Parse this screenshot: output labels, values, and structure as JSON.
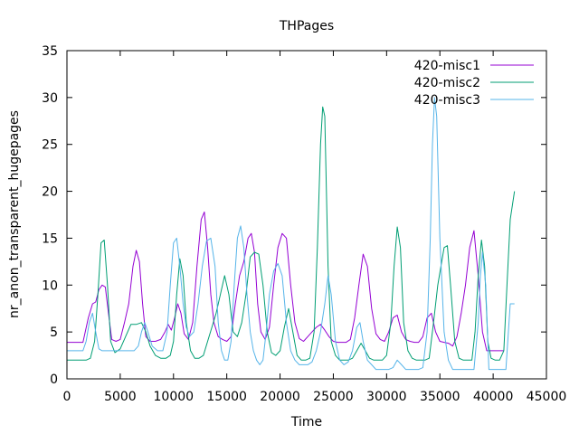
{
  "chart_data": {
    "type": "line",
    "title": "THPages",
    "xlabel": "Time",
    "ylabel": "nr_anon_transparent_hugepages",
    "xlim": [
      0,
      45000
    ],
    "ylim": [
      0,
      35
    ],
    "xticks": [
      0,
      5000,
      10000,
      15000,
      20000,
      25000,
      30000,
      35000,
      40000,
      45000
    ],
    "yticks": [
      0,
      5,
      10,
      15,
      20,
      25,
      30,
      35
    ],
    "grid": false,
    "legend_position": "top-right",
    "series": [
      {
        "name": "420-misc1",
        "color": "#9400d3",
        "x": [
          0,
          1500,
          2000,
          2400,
          2700,
          3000,
          3300,
          3600,
          3900,
          4200,
          4600,
          5000,
          5400,
          5800,
          6200,
          6500,
          6800,
          7100,
          7400,
          7800,
          8300,
          8800,
          9200,
          9500,
          9800,
          10100,
          10400,
          10700,
          11000,
          11400,
          11800,
          12200,
          12600,
          12900,
          13200,
          13500,
          13800,
          14200,
          14600,
          15000,
          15400,
          15800,
          16200,
          16600,
          17000,
          17300,
          17600,
          17900,
          18200,
          18600,
          19000,
          19400,
          19800,
          20200,
          20600,
          21000,
          21400,
          21800,
          22200,
          22600,
          23000,
          23400,
          23800,
          24200,
          24600,
          25000,
          25400,
          25800,
          26200,
          26600,
          27000,
          27400,
          27800,
          28200,
          28600,
          29000,
          29400,
          29800,
          30200,
          30600,
          31000,
          31400,
          31800,
          32200,
          32600,
          33000,
          33400,
          33800,
          34200,
          34600,
          35000,
          35400,
          35800,
          36200,
          36600,
          37000,
          37400,
          37800,
          38200,
          38600,
          39000,
          39400,
          39800,
          40200,
          40600,
          41000
        ],
        "y": [
          3.9,
          3.9,
          6.5,
          8.0,
          8.2,
          9.5,
          10.0,
          9.8,
          7.0,
          4.2,
          4.0,
          4.2,
          6.0,
          8.0,
          12.0,
          13.7,
          12.5,
          8.0,
          4.5,
          4.0,
          4.0,
          4.2,
          5.0,
          5.8,
          5.2,
          6.5,
          8.0,
          7.0,
          4.8,
          4.2,
          6.0,
          12.0,
          17.0,
          17.8,
          14.0,
          9.0,
          6.0,
          4.5,
          4.2,
          4.0,
          4.5,
          8.0,
          11.0,
          12.5,
          15.0,
          15.5,
          13.5,
          8.0,
          5.0,
          4.2,
          5.5,
          10.0,
          14.0,
          15.5,
          15.0,
          10.0,
          6.0,
          4.3,
          4.0,
          4.5,
          5.0,
          5.5,
          5.8,
          5.2,
          4.5,
          4.0,
          3.9,
          3.9,
          3.9,
          4.2,
          6.5,
          10.0,
          13.3,
          12.0,
          7.5,
          4.8,
          4.2,
          4.0,
          5.0,
          6.5,
          6.8,
          5.0,
          4.2,
          4.0,
          3.9,
          3.9,
          4.5,
          6.5,
          7.0,
          5.0,
          4.0,
          3.9,
          3.8,
          3.5,
          4.5,
          7.0,
          10.0,
          14.0,
          15.8,
          11.0,
          5.0,
          3.0,
          3.0,
          3.0,
          3.0,
          3.0
        ]
      },
      {
        "name": "420-misc2",
        "color": "#009e73",
        "x": [
          0,
          1800,
          2200,
          2600,
          2900,
          3200,
          3500,
          3800,
          4100,
          4500,
          5000,
          5500,
          6000,
          6500,
          7000,
          7400,
          7800,
          8300,
          8800,
          9300,
          9700,
          10000,
          10300,
          10600,
          10900,
          11200,
          11600,
          12000,
          12400,
          12800,
          13200,
          13600,
          14000,
          14400,
          14800,
          15200,
          15600,
          16000,
          16400,
          16800,
          17200,
          17600,
          18000,
          18400,
          18800,
          19200,
          19600,
          20000,
          20400,
          20800,
          21200,
          21600,
          22000,
          22400,
          22800,
          23200,
          23500,
          23800,
          24000,
          24200,
          24500,
          24800,
          25200,
          25600,
          26000,
          26400,
          26800,
          27200,
          27600,
          28000,
          28400,
          28800,
          29200,
          29600,
          30000,
          30400,
          30700,
          31000,
          31300,
          31600,
          32000,
          32400,
          32800,
          33200,
          33600,
          34000,
          34400,
          34800,
          35100,
          35400,
          35700,
          36000,
          36400,
          36800,
          37200,
          37600,
          38000,
          38300,
          38600,
          38900,
          39200,
          39500,
          39800,
          40200,
          40600,
          41000,
          41300,
          41600,
          42000
        ],
        "y": [
          2.0,
          2.0,
          2.2,
          4.0,
          9.0,
          14.5,
          14.8,
          10.0,
          4.0,
          2.8,
          3.2,
          4.5,
          5.8,
          5.8,
          6.0,
          5.0,
          3.5,
          2.5,
          2.2,
          2.2,
          2.5,
          4.0,
          9.0,
          12.8,
          11.0,
          6.0,
          3.0,
          2.2,
          2.2,
          2.5,
          4.0,
          5.5,
          7.0,
          9.0,
          11.0,
          9.0,
          5.0,
          4.5,
          6.0,
          9.0,
          13.0,
          13.5,
          13.3,
          10.0,
          5.0,
          2.8,
          2.5,
          3.0,
          5.5,
          7.5,
          5.0,
          2.5,
          2.0,
          2.0,
          2.2,
          5.0,
          14.0,
          25.0,
          29.0,
          28.0,
          12.0,
          4.0,
          2.5,
          2.0,
          2.0,
          2.0,
          2.2,
          3.0,
          3.8,
          3.0,
          2.2,
          2.0,
          2.0,
          2.0,
          2.5,
          6.0,
          12.0,
          16.2,
          14.0,
          6.0,
          3.0,
          2.2,
          2.0,
          2.0,
          2.0,
          2.2,
          6.0,
          10.0,
          12.0,
          14.0,
          14.2,
          10.0,
          4.0,
          2.2,
          2.0,
          2.0,
          2.0,
          5.0,
          11.0,
          14.8,
          12.0,
          4.0,
          2.2,
          2.0,
          2.0,
          3.0,
          10.0,
          17.0,
          20.0
        ]
      },
      {
        "name": "420-misc3",
        "color": "#56b4e9",
        "x": [
          0,
          1500,
          1800,
          2100,
          2400,
          2700,
          3000,
          3300,
          3600,
          3900,
          4300,
          4800,
          5300,
          5800,
          6300,
          6700,
          7000,
          7300,
          7600,
          8000,
          8500,
          9000,
          9400,
          9700,
          10000,
          10300,
          10600,
          10900,
          11200,
          11500,
          11900,
          12300,
          12700,
          13100,
          13500,
          13900,
          14200,
          14500,
          14800,
          15100,
          15400,
          15700,
          16000,
          16300,
          16600,
          16900,
          17200,
          17500,
          17800,
          18100,
          18400,
          18700,
          19000,
          19400,
          19800,
          20200,
          20600,
          21000,
          21400,
          21800,
          22200,
          22600,
          23000,
          23400,
          23800,
          24200,
          24500,
          24800,
          25200,
          25600,
          26000,
          26400,
          26800,
          27200,
          27500,
          27800,
          28200,
          28600,
          29000,
          29400,
          29800,
          30200,
          30600,
          31000,
          31400,
          31800,
          32200,
          32600,
          33000,
          33400,
          33800,
          34100,
          34300,
          34500,
          34700,
          35000,
          35400,
          35800,
          36200,
          36600,
          37000,
          37400,
          37800,
          38200,
          38600,
          38800,
          39000,
          39300,
          39600,
          40000,
          40400,
          40800,
          41200,
          41600,
          42000
        ],
        "y": [
          3.0,
          3.0,
          4.0,
          6.0,
          7.0,
          5.0,
          3.2,
          3.0,
          3.0,
          3.0,
          3.0,
          3.0,
          3.0,
          3.0,
          3.0,
          3.5,
          5.0,
          6.0,
          5.0,
          3.5,
          3.0,
          3.0,
          5.0,
          10.0,
          14.5,
          15.0,
          12.0,
          8.0,
          5.5,
          4.5,
          5.0,
          8.0,
          12.0,
          14.7,
          15.0,
          12.0,
          6.0,
          3.0,
          2.0,
          2.0,
          4.0,
          10.0,
          15.0,
          16.3,
          14.0,
          9.0,
          5.0,
          3.0,
          2.0,
          1.5,
          2.0,
          5.0,
          9.0,
          11.5,
          12.3,
          11.0,
          6.0,
          3.0,
          2.0,
          1.5,
          1.5,
          1.5,
          1.8,
          3.0,
          5.0,
          8.0,
          11.0,
          9.0,
          4.0,
          2.0,
          1.5,
          1.8,
          3.0,
          5.5,
          6.0,
          4.0,
          2.0,
          1.5,
          1.0,
          1.0,
          1.0,
          1.0,
          1.2,
          2.0,
          1.5,
          1.0,
          1.0,
          1.0,
          1.0,
          1.2,
          5.0,
          15.0,
          25.0,
          30.0,
          28.0,
          15.0,
          5.0,
          2.0,
          1.0,
          1.0,
          1.0,
          1.0,
          1.0,
          1.0,
          6.0,
          11.0,
          13.5,
          10.0,
          1.0,
          1.0,
          1.0,
          1.0,
          1.0,
          8.0,
          8.0
        ]
      }
    ]
  }
}
